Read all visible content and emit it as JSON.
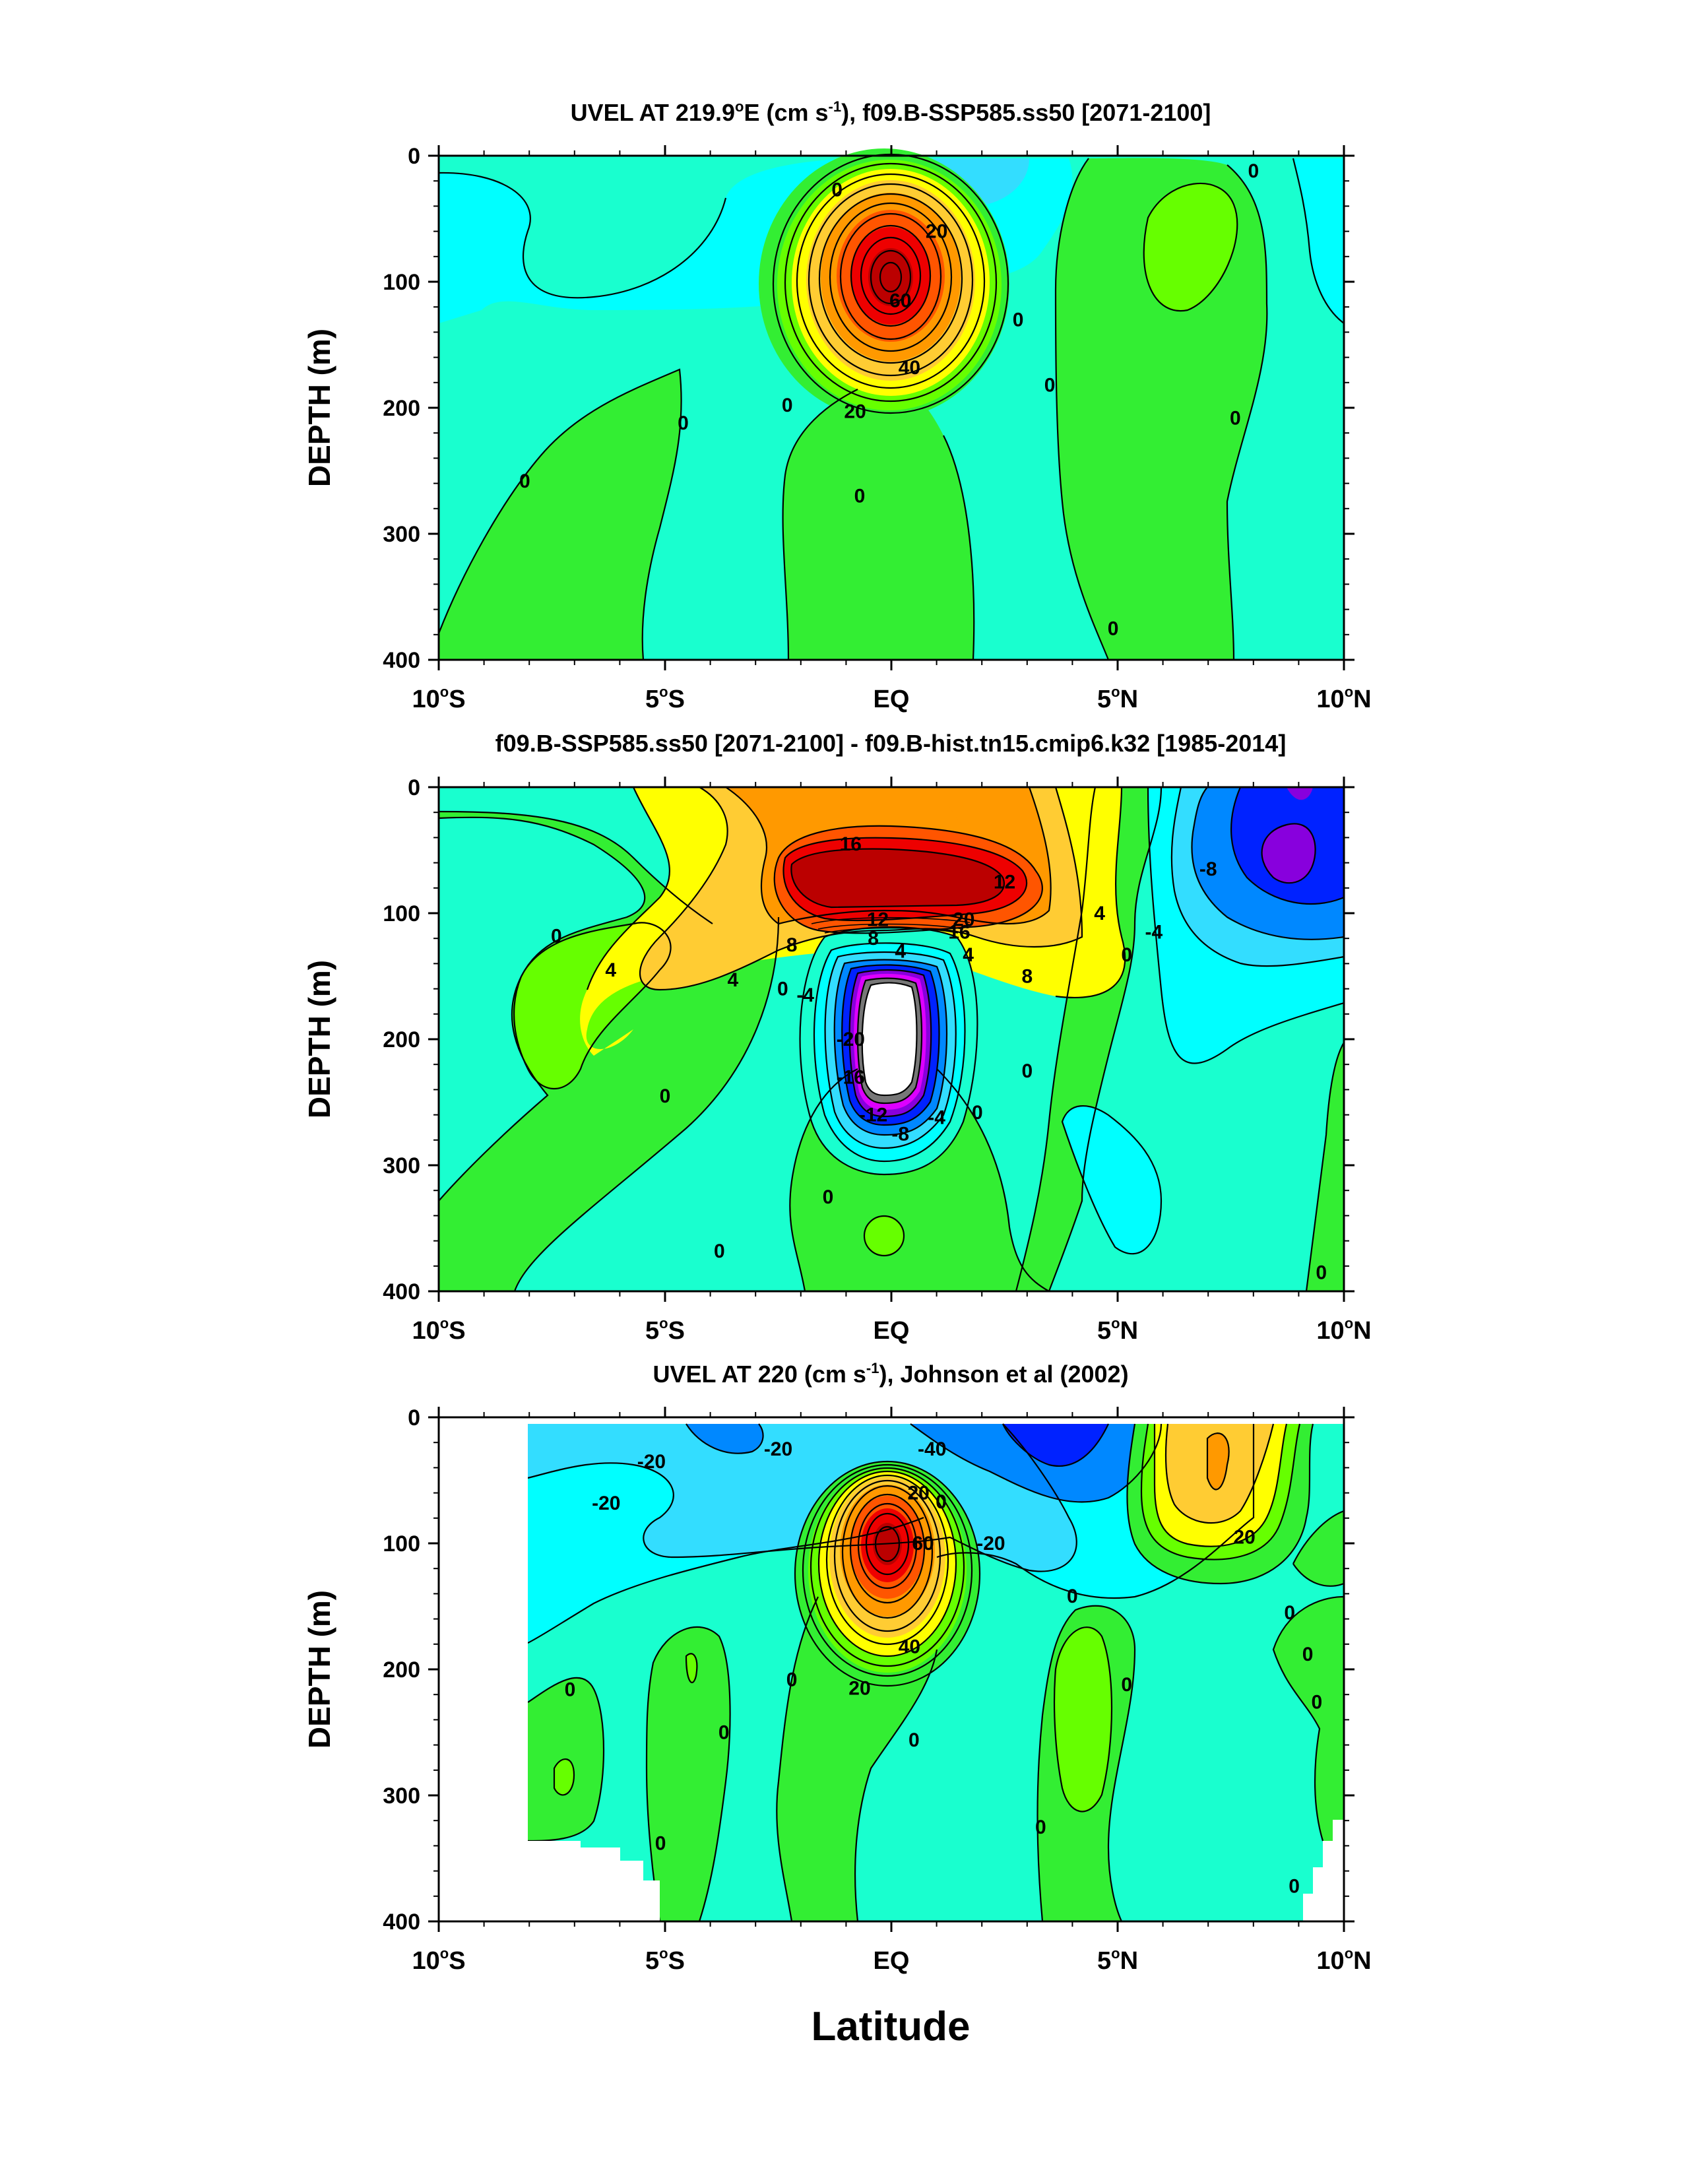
{
  "xlabel": "Latitude",
  "ylabel": "DEPTH (m)",
  "colors": {
    "bg_neutral": "#19ffcf",
    "cyan": "#00ffff",
    "light_blue": "#33ddff",
    "mid_blue": "#0088ff",
    "blue": "#0022ff",
    "purple": "#8800dd",
    "magenta": "#dd00ff",
    "green": "#33ee33",
    "lime": "#66ff00",
    "yellow": "#ffff00",
    "gold": "#ffcc33",
    "orange": "#ff9900",
    "dark_orange": "#ff5500",
    "red": "#ee0000",
    "dark_red": "#bb0000",
    "gray": "#777777"
  },
  "chart_data": [
    {
      "type": "contour",
      "title": {
        "main": "UVEL AT 219.9",
        "deg": "o",
        "after": "E (cm s",
        "sup": "-1",
        "tail": "), f09.B-SSP585.ss50 [2071-2100]"
      },
      "xticks": [
        {
          "lat": -10,
          "num": "10",
          "deg": "o",
          "hem": "S"
        },
        {
          "lat": -5,
          "num": "5",
          "deg": "o",
          "hem": "S"
        },
        {
          "lat": 0,
          "num": "EQ",
          "deg": "",
          "hem": ""
        },
        {
          "lat": 5,
          "num": "5",
          "deg": "o",
          "hem": "N"
        },
        {
          "lat": 10,
          "num": "10",
          "deg": "o",
          "hem": "N"
        }
      ],
      "yticks": [
        "0",
        "100",
        "200",
        "300",
        "400"
      ],
      "xlim": [
        -10,
        10
      ],
      "ylim": [
        400,
        0
      ],
      "contour_labels": [
        {
          "text": "0",
          "lat": -1.2,
          "depth": 27
        },
        {
          "text": "20",
          "lat": 1.0,
          "depth": 60
        },
        {
          "text": "60",
          "lat": 0.2,
          "depth": 115
        },
        {
          "text": "40",
          "lat": 0.4,
          "depth": 168
        },
        {
          "text": "20",
          "lat": -0.8,
          "depth": 203
        },
        {
          "text": "0",
          "lat": 2.8,
          "depth": 130
        },
        {
          "text": "0",
          "lat": 8.0,
          "depth": 12
        },
        {
          "text": "0",
          "lat": 3.5,
          "depth": 182
        },
        {
          "text": "0",
          "lat": 7.6,
          "depth": 208
        },
        {
          "text": "0",
          "lat": -4.6,
          "depth": 212
        },
        {
          "text": "0",
          "lat": -2.3,
          "depth": 198
        },
        {
          "text": "0",
          "lat": -8.1,
          "depth": 258
        },
        {
          "text": "0",
          "lat": -0.7,
          "depth": 270
        },
        {
          "text": "0",
          "lat": 4.9,
          "depth": 375
        }
      ]
    },
    {
      "type": "contour",
      "title": {
        "main": "f09.B-SSP585.ss50 [2071-2100] - f09.B-hist.tn15.cmip6.k32 [1985-2014]",
        "deg": "",
        "after": "",
        "sup": "",
        "tail": ""
      },
      "xticks": [
        {
          "lat": -10,
          "num": "10",
          "deg": "o",
          "hem": "S"
        },
        {
          "lat": -5,
          "num": "5",
          "deg": "o",
          "hem": "S"
        },
        {
          "lat": 0,
          "num": "EQ",
          "deg": "",
          "hem": ""
        },
        {
          "lat": 5,
          "num": "5",
          "deg": "o",
          "hem": "N"
        },
        {
          "lat": 10,
          "num": "10",
          "deg": "o",
          "hem": "N"
        }
      ],
      "yticks": [
        "0",
        "100",
        "200",
        "300",
        "400"
      ],
      "xlim": [
        -10,
        10
      ],
      "ylim": [
        400,
        0
      ],
      "contour_labels": [
        {
          "text": "16",
          "lat": -0.9,
          "depth": 45
        },
        {
          "text": "12",
          "lat": 2.5,
          "depth": 75
        },
        {
          "text": "-8",
          "lat": 7.0,
          "depth": 65
        },
        {
          "text": "4",
          "lat": 4.6,
          "depth": 100
        },
        {
          "text": "0",
          "lat": 5.2,
          "depth": 133
        },
        {
          "text": "-4",
          "lat": 5.8,
          "depth": 115
        },
        {
          "text": "20",
          "lat": 1.6,
          "depth": 105
        },
        {
          "text": "16",
          "lat": 1.5,
          "depth": 115
        },
        {
          "text": "12",
          "lat": -0.3,
          "depth": 105
        },
        {
          "text": "8",
          "lat": -0.4,
          "depth": 120
        },
        {
          "text": "4",
          "lat": 0.2,
          "depth": 130
        },
        {
          "text": "8",
          "lat": -2.2,
          "depth": 125
        },
        {
          "text": "4",
          "lat": 1.7,
          "depth": 133
        },
        {
          "text": "8",
          "lat": 3.0,
          "depth": 150
        },
        {
          "text": "0",
          "lat": -7.4,
          "depth": 118
        },
        {
          "text": "4",
          "lat": -6.2,
          "depth": 145
        },
        {
          "text": "4",
          "lat": -3.5,
          "depth": 153
        },
        {
          "text": "0",
          "lat": -2.4,
          "depth": 160
        },
        {
          "text": "-4",
          "lat": -1.9,
          "depth": 165
        },
        {
          "text": "-20",
          "lat": -0.9,
          "depth": 200
        },
        {
          "text": "-16",
          "lat": -0.9,
          "depth": 230
        },
        {
          "text": "-12",
          "lat": -0.4,
          "depth": 260
        },
        {
          "text": "-8",
          "lat": 0.2,
          "depth": 275
        },
        {
          "text": "-4",
          "lat": 1.0,
          "depth": 262
        },
        {
          "text": "0",
          "lat": 1.9,
          "depth": 258
        },
        {
          "text": "0",
          "lat": 3.0,
          "depth": 225
        },
        {
          "text": "0",
          "lat": -5.0,
          "depth": 245
        },
        {
          "text": "0",
          "lat": -1.4,
          "depth": 325
        },
        {
          "text": "0",
          "lat": -3.8,
          "depth": 368
        },
        {
          "text": "0",
          "lat": 9.5,
          "depth": 385
        }
      ]
    },
    {
      "type": "contour",
      "title": {
        "main": "UVEL AT 220 (cm s",
        "deg": "",
        "after": "",
        "sup": "-1",
        "tail": "), Johnson et al (2002)"
      },
      "xticks": [
        {
          "lat": -10,
          "num": "10",
          "deg": "o",
          "hem": "S"
        },
        {
          "lat": -5,
          "num": "5",
          "deg": "o",
          "hem": "S"
        },
        {
          "lat": 0,
          "num": "EQ",
          "deg": "",
          "hem": ""
        },
        {
          "lat": 5,
          "num": "5",
          "deg": "o",
          "hem": "N"
        },
        {
          "lat": 10,
          "num": "10",
          "deg": "o",
          "hem": "N"
        }
      ],
      "yticks": [
        "0",
        "100",
        "200",
        "300",
        "400"
      ],
      "xlim": [
        -10,
        10
      ],
      "ylim": [
        400,
        0
      ],
      "contour_labels": [
        {
          "text": "-20",
          "lat": -5.3,
          "depth": 35
        },
        {
          "text": "-20",
          "lat": -2.5,
          "depth": 25
        },
        {
          "text": "-40",
          "lat": 0.9,
          "depth": 25
        },
        {
          "text": "-20",
          "lat": -6.3,
          "depth": 68
        },
        {
          "text": "20",
          "lat": 0.6,
          "depth": 60
        },
        {
          "text": "0",
          "lat": 1.1,
          "depth": 67
        },
        {
          "text": "60",
          "lat": 0.7,
          "depth": 100
        },
        {
          "text": "-20",
          "lat": 2.2,
          "depth": 100
        },
        {
          "text": "20",
          "lat": 7.8,
          "depth": 95
        },
        {
          "text": "0",
          "lat": 4.0,
          "depth": 142
        },
        {
          "text": "0",
          "lat": 8.8,
          "depth": 155
        },
        {
          "text": "40",
          "lat": 0.4,
          "depth": 182
        },
        {
          "text": "0",
          "lat": 9.2,
          "depth": 188
        },
        {
          "text": "20",
          "lat": -0.7,
          "depth": 215
        },
        {
          "text": "0",
          "lat": -2.2,
          "depth": 208
        },
        {
          "text": "0",
          "lat": -7.1,
          "depth": 216
        },
        {
          "text": "0",
          "lat": 5.2,
          "depth": 212
        },
        {
          "text": "0",
          "lat": 9.4,
          "depth": 226
        },
        {
          "text": "0",
          "lat": -3.7,
          "depth": 250
        },
        {
          "text": "0",
          "lat": 0.5,
          "depth": 256
        },
        {
          "text": "0",
          "lat": 3.3,
          "depth": 325
        },
        {
          "text": "0",
          "lat": -5.1,
          "depth": 338
        },
        {
          "text": "0",
          "lat": 8.9,
          "depth": 372
        }
      ]
    }
  ]
}
